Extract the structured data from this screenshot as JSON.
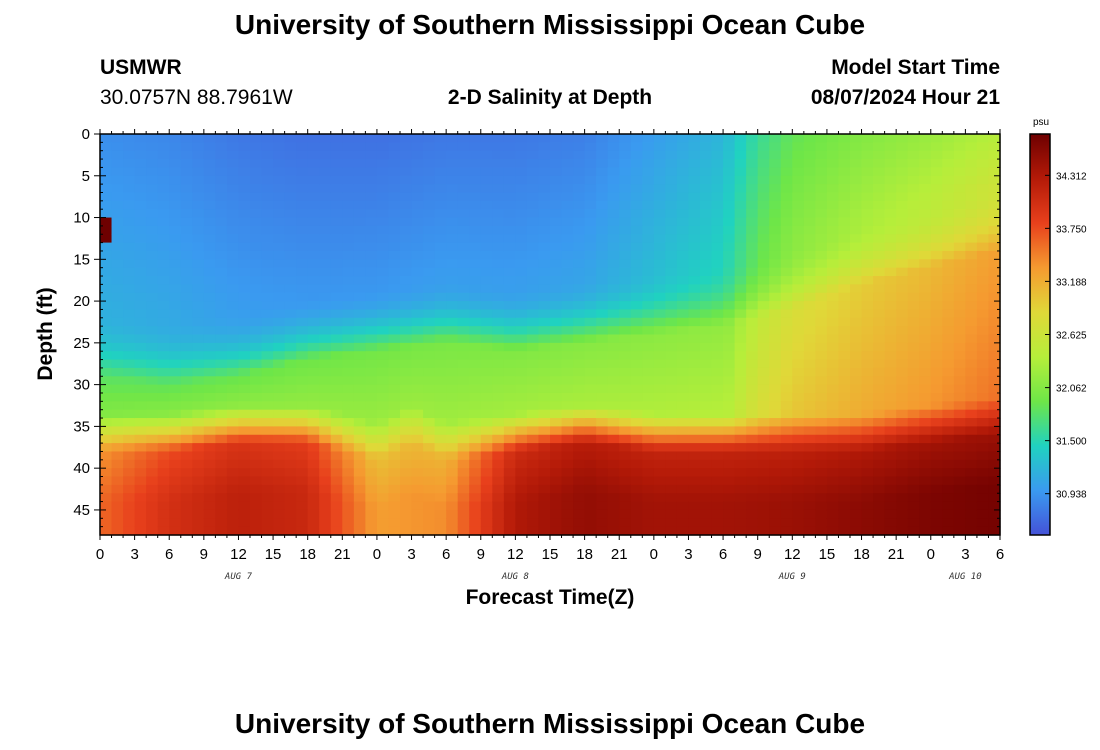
{
  "header": {
    "title": "University of Southern Mississippi Ocean Cube",
    "station": "USMWR",
    "coords": "30.0757N  88.7961W",
    "model_start_label": "Model Start Time",
    "model_start_value": "08/07/2024 Hour 21",
    "footer_title": "University of Southern Mississippi Ocean Cube"
  },
  "chart_data": {
    "type": "heatmap",
    "title": "2-D Salinity at Depth",
    "xlabel": "Forecast Time(Z)",
    "ylabel": "Depth (ft)",
    "xlim": [
      0,
      78
    ],
    "ylim": [
      48,
      0
    ],
    "y_ticks": [
      0,
      5,
      10,
      15,
      20,
      25,
      30,
      35,
      40,
      45
    ],
    "x_tick_labels": [
      "0",
      "3",
      "6",
      "9",
      "12",
      "15",
      "18",
      "21",
      "0",
      "3",
      "6",
      "9",
      "12",
      "15",
      "18",
      "21",
      "0",
      "3",
      "6",
      "9",
      "12",
      "15",
      "18",
      "21",
      "0",
      "3",
      "6"
    ],
    "date_labels": [
      {
        "label": "AUG 7",
        "hour": 12
      },
      {
        "label": "AUG 8",
        "hour": 36
      },
      {
        "label": "AUG 9",
        "hour": 60
      },
      {
        "label": "AUG 10",
        "hour": 75
      }
    ],
    "colorbar": {
      "unit": "psu",
      "min": 30.5,
      "max": 34.75,
      "tick_values": [
        34.312,
        33.75,
        33.188,
        32.625,
        32.062,
        31.5,
        30.938
      ],
      "tick_labels": [
        "34.312",
        "33.750",
        "33.188",
        "32.625",
        "32.062",
        "31.500",
        "30.938"
      ],
      "colors": [
        "#4452d8",
        "#3a9af0",
        "#20d2c0",
        "#6ee648",
        "#b6ee3a",
        "#e0d838",
        "#f59a30",
        "#e8401c",
        "#b41a08",
        "#6e0000"
      ]
    },
    "value_range": [
      30.6,
      34.7
    ],
    "depth_step_ft": 1,
    "time_step_hours": 1,
    "surface_boundary_depth_ft": [
      [
        0,
        29
      ],
      [
        6,
        30
      ],
      [
        12,
        29
      ],
      [
        15,
        28
      ],
      [
        18,
        27
      ],
      [
        24,
        26
      ],
      [
        30,
        25
      ],
      [
        36,
        26
      ],
      [
        42,
        25
      ],
      [
        48,
        24
      ],
      [
        54,
        23
      ],
      [
        60,
        21
      ],
      [
        66,
        18
      ],
      [
        72,
        16
      ],
      [
        78,
        14
      ]
    ],
    "halocline_depth_ft": [
      [
        0,
        35
      ],
      [
        6,
        35
      ],
      [
        12,
        34
      ],
      [
        18,
        34
      ],
      [
        24,
        36
      ],
      [
        27,
        34
      ],
      [
        30,
        36
      ],
      [
        36,
        35
      ],
      [
        42,
        34
      ],
      [
        48,
        35
      ],
      [
        54,
        35
      ],
      [
        60,
        35
      ],
      [
        66,
        35
      ],
      [
        72,
        34
      ],
      [
        78,
        33
      ]
    ],
    "surface_salinity_psu": [
      [
        0,
        30.9
      ],
      [
        6,
        30.85
      ],
      [
        12,
        30.75
      ],
      [
        18,
        30.7
      ],
      [
        24,
        30.7
      ],
      [
        30,
        30.75
      ],
      [
        36,
        30.75
      ],
      [
        42,
        30.8
      ],
      [
        48,
        31.0
      ],
      [
        54,
        31.2
      ],
      [
        57,
        31.6
      ],
      [
        60,
        31.85
      ],
      [
        66,
        32.05
      ],
      [
        72,
        32.2
      ],
      [
        78,
        32.4
      ]
    ],
    "bottom_salinity_psu": [
      [
        0,
        33.6
      ],
      [
        6,
        34.0
      ],
      [
        12,
        34.2
      ],
      [
        18,
        34.1
      ],
      [
        24,
        33.3
      ],
      [
        30,
        33.4
      ],
      [
        36,
        34.3
      ],
      [
        42,
        34.5
      ],
      [
        48,
        34.4
      ],
      [
        54,
        34.4
      ],
      [
        60,
        34.45
      ],
      [
        66,
        34.55
      ],
      [
        72,
        34.65
      ],
      [
        78,
        34.7
      ]
    ]
  }
}
